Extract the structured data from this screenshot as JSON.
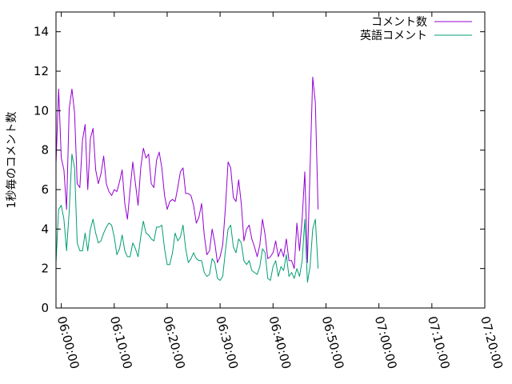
{
  "chart_data": {
    "type": "line",
    "title": "",
    "xlabel": "",
    "ylabel": "1秒毎のコメント数",
    "xlim": [
      "05:59:00",
      "07:20:00"
    ],
    "ylim": [
      0,
      15
    ],
    "y_ticks": [
      0,
      2,
      4,
      6,
      8,
      10,
      12,
      14
    ],
    "x_ticks": [
      "06:00:00",
      "06:10:00",
      "06:20:00",
      "06:30:00",
      "06:40:00",
      "06:50:00",
      "07:00:00",
      "07:10:00",
      "07:20:00"
    ],
    "grid": false,
    "legend": "top-right",
    "x_start": "05:59:00",
    "x_step_seconds": 30,
    "series": [
      {
        "name": "コメント数",
        "color": "#9400d3",
        "values": [
          7.3,
          11.1,
          7.6,
          7.0,
          5.0,
          10.1,
          11.1,
          9.9,
          6.3,
          6.1,
          8.5,
          9.3,
          6.0,
          8.6,
          9.1,
          7.0,
          6.3,
          6.8,
          7.7,
          6.3,
          5.9,
          5.7,
          6.0,
          5.9,
          6.4,
          7.0,
          5.3,
          4.5,
          6.0,
          7.4,
          6.3,
          5.2,
          7.1,
          8.1,
          7.6,
          7.8,
          6.3,
          6.1,
          7.5,
          7.9,
          7.1,
          5.7,
          5.0,
          5.4,
          5.5,
          5.4,
          6.1,
          6.9,
          7.1,
          5.8,
          5.8,
          5.7,
          5.2,
          4.3,
          4.6,
          5.3,
          3.7,
          2.7,
          2.9,
          4.0,
          3.3,
          2.3,
          2.6,
          3.2,
          5.1,
          7.4,
          7.1,
          5.6,
          5.4,
          6.5,
          5.3,
          3.4,
          4.0,
          4.2,
          3.5,
          3.1,
          2.6,
          3.2,
          4.5,
          3.7,
          2.5,
          2.6,
          2.8,
          3.4,
          2.6,
          3.0,
          2.6,
          3.5,
          2.4,
          2.4,
          2.0,
          4.3,
          2.9,
          4.5,
          6.9,
          2.3,
          7.1,
          11.7,
          10.4,
          5.0
        ]
      },
      {
        "name": "英語コメント",
        "color": "#009e73",
        "values": [
          2.3,
          5.0,
          5.2,
          4.5,
          2.9,
          4.9,
          7.8,
          7.1,
          3.3,
          2.9,
          2.9,
          3.8,
          2.9,
          4.0,
          4.5,
          3.8,
          3.3,
          3.4,
          3.8,
          4.1,
          4.3,
          4.2,
          3.6,
          2.7,
          3.0,
          3.7,
          2.9,
          2.6,
          2.6,
          3.3,
          3.0,
          2.6,
          3.6,
          4.4,
          3.8,
          3.7,
          3.5,
          3.4,
          4.1,
          4.1,
          4.2,
          3.0,
          2.2,
          2.2,
          2.8,
          3.8,
          3.4,
          3.6,
          4.2,
          3.0,
          2.3,
          2.5,
          2.8,
          2.5,
          2.4,
          2.4,
          1.8,
          1.6,
          1.7,
          2.5,
          2.3,
          1.5,
          1.4,
          1.6,
          2.9,
          4.0,
          4.2,
          3.1,
          2.8,
          3.5,
          3.3,
          2.4,
          2.2,
          2.4,
          1.9,
          1.8,
          1.7,
          2.1,
          3.0,
          2.8,
          1.5,
          1.4,
          2.1,
          2.4,
          1.6,
          2.1,
          1.9,
          2.7,
          1.6,
          1.8,
          1.5,
          2.0,
          1.6,
          2.4,
          4.5,
          1.3,
          2.1,
          4.0,
          4.5,
          2.0
        ]
      }
    ]
  }
}
